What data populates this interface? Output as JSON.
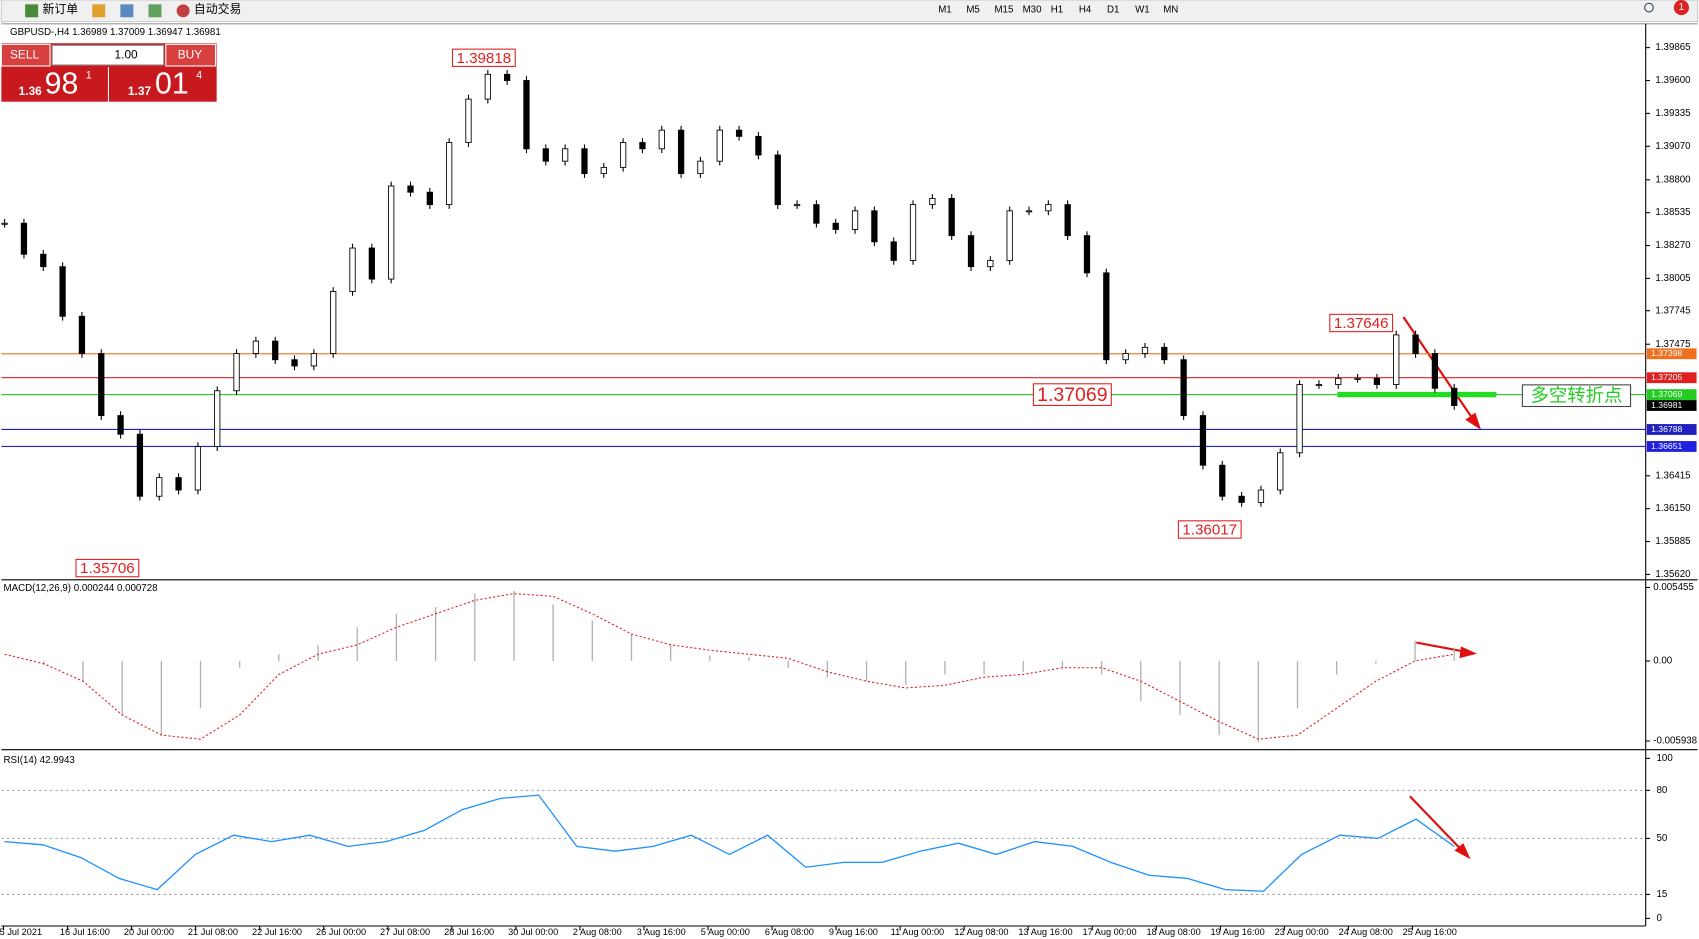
{
  "toolbar": {
    "buttons": [
      "新订单",
      "自动交易"
    ],
    "timeframes": [
      "M1",
      "M5",
      "M15",
      "M30",
      "H1",
      "H4",
      "D1",
      "W1",
      "MN"
    ],
    "badge": "1"
  },
  "order_panel": {
    "sell": "SELL",
    "buy": "BUY",
    "lots": "1.00",
    "bid_big": "1.36",
    "bid_main": "98",
    "bid_sup": "1",
    "ask_big": "1.37",
    "ask_main": "01",
    "ask_sup": "4"
  },
  "chart": {
    "header": "GBPUSD-,H4  1.36989 1.37009 1.36947 1.36981",
    "price": {
      "ylim": [
        1.35585,
        1.40057
      ],
      "yticks": [
        1.39865,
        {
          "value": 1.396,
          "label": "1.39600"
        },
        1.39335,
        {
          "value": 1.3907,
          "label": "1.39070"
        },
        {
          "value": 1.388,
          "label": "1.38800"
        },
        1.38535,
        {
          "value": 1.3827,
          "label": "1.38270"
        },
        1.38005,
        1.37745,
        1.37475,
        1.36415,
        {
          "value": 1.3615,
          "label": "1.36150"
        },
        1.35885,
        {
          "value": 1.3562,
          "label": "1.35620"
        }
      ],
      "closes": [
        1.3845,
        1.382,
        1.381,
        1.377,
        1.374,
        1.369,
        1.3675,
        1.3625,
        1.364,
        1.363,
        1.3665,
        1.371,
        1.374,
        1.375,
        1.3735,
        1.373,
        1.374,
        1.379,
        1.3825,
        1.38,
        1.3875,
        1.387,
        1.386,
        1.391,
        1.3945,
        1.3965,
        1.396,
        1.3905,
        1.3895,
        1.3905,
        1.3885,
        1.389,
        1.391,
        1.3905,
        1.392,
        1.3885,
        1.3895,
        1.392,
        1.3915,
        1.39,
        1.386,
        1.386,
        1.3845,
        1.384,
        1.3855,
        1.383,
        1.3815,
        1.386,
        1.3865,
        1.3835,
        1.381,
        1.3815,
        1.3855,
        1.3855,
        1.386,
        1.3835,
        1.3805,
        1.3735,
        1.374,
        1.3745,
        1.3735,
        1.369,
        1.365,
        1.3625,
        1.362,
        1.363,
        1.366,
        1.3715,
        1.3715,
        1.372,
        1.372,
        1.3715,
        1.3755,
        1.374,
        1.3712,
        1.36981
      ],
      "levels": [
        {
          "value": 1.37398,
          "color": "#f07020"
        },
        {
          "value": 1.37205,
          "color": "#e02020"
        },
        {
          "value": 1.37069,
          "color": "#22cc22"
        },
        {
          "value": 1.36981,
          "color": "#000000"
        },
        {
          "value": 1.36788,
          "color": "#2020c0"
        },
        {
          "value": 1.36651,
          "color": "#2020e0"
        }
      ],
      "annotations": [
        1.39818,
        1.35706,
        1.36017,
        1.37646,
        1.37069
      ],
      "note": "多空转折点"
    },
    "x_labels": [
      "5 Jul 2021",
      "16 Jul 16:00",
      "20 Jul 00:00",
      "21 Jul 08:00",
      "22 Jul 16:00",
      "26 Jul 00:00",
      "27 Jul 08:00",
      "28 Jul 16:00",
      "30 Jul 00:00",
      "2 Aug 08:00",
      "3 Aug 16:00",
      "5 Aug 00:00",
      "6 Aug 08:00",
      "9 Aug 16:00",
      "11 Aug 00:00",
      "12 Aug 08:00",
      "13 Aug 16:00",
      "17 Aug 00:00",
      "18 Aug 08:00",
      "19 Aug 16:00",
      "23 Aug 00:00",
      "24 Aug 08:00",
      "25 Aug 16:00"
    ],
    "macd": {
      "header": "MACD(12,26,9) 0.000244 0.000728",
      "ylim": [
        -0.0065,
        0.00594
      ],
      "yticks": [
        0.005455,
        {
          "value": 0,
          "label": "0.00"
        },
        -0.005938
      ],
      "histogram": [
        0,
        -0.0003,
        -0.0015,
        -0.004,
        -0.0055,
        -0.0035,
        -0.0005,
        0.0005,
        0.0012,
        0.0025,
        0.0035,
        0.004,
        0.005,
        0.0052,
        0.0042,
        0.003,
        0.002,
        0.0012,
        0.0004,
        0.0003,
        -0.0005,
        -0.0012,
        -0.0015,
        -0.0018,
        -0.001,
        -0.001,
        -0.0008,
        -0.0005,
        -0.001,
        -0.003,
        -0.004,
        -0.0055,
        -0.006,
        -0.0035,
        -0.001,
        -0.0002,
        0.0015,
        0.001
      ],
      "signal": [
        0.0005,
        -0.0002,
        -0.0015,
        -0.004,
        -0.0055,
        -0.0058,
        -0.004,
        -0.001,
        0.0005,
        0.0012,
        0.0025,
        0.0035,
        0.0045,
        0.005,
        0.0048,
        0.0035,
        0.002,
        0.0012,
        0.0008,
        0.0005,
        0.0002,
        -0.0008,
        -0.0015,
        -0.002,
        -0.0018,
        -0.0012,
        -0.001,
        -0.0005,
        -0.0005,
        -0.0015,
        -0.003,
        -0.0045,
        -0.0058,
        -0.0055,
        -0.0035,
        -0.0015,
        0,
        0.0005
      ]
    },
    "rsi": {
      "header": "RSI(14) 42.9943",
      "ylim": [
        0,
        100
      ],
      "yticks": [
        100,
        80,
        50,
        15,
        0
      ],
      "values": [
        48,
        46,
        38,
        25,
        18,
        40,
        52,
        48,
        52,
        45,
        48,
        55,
        68,
        75,
        77,
        45,
        42,
        45,
        52,
        40,
        52,
        32,
        35,
        35,
        42,
        47,
        40,
        48,
        45,
        35,
        27,
        25,
        18,
        17,
        40,
        52,
        50,
        62,
        45
      ]
    }
  }
}
